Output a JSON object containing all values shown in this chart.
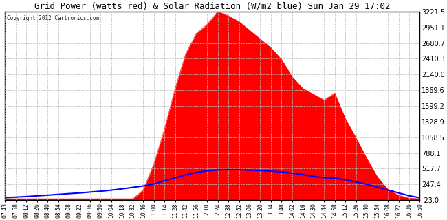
{
  "title": "Grid Power (watts red) & Solar Radiation (W/m2 blue) Sun Jan 29 17:02",
  "copyright": "Copyright 2012 Cartronics.com",
  "background_color": "#ffffff",
  "plot_bg_color": "#ffffff",
  "grid_color": "#bbbbbb",
  "yticks": [
    3221.5,
    2951.1,
    2680.7,
    2410.3,
    2140.0,
    1869.6,
    1599.2,
    1328.9,
    1058.5,
    788.1,
    517.7,
    247.4,
    -23.0
  ],
  "ymin": -23.0,
  "ymax": 3221.5,
  "solar_color": "#ff0000",
  "radiation_color": "#0000ff",
  "x_labels": [
    "07:43",
    "07:58",
    "08:12",
    "08:26",
    "08:40",
    "08:54",
    "09:08",
    "09:22",
    "09:36",
    "09:50",
    "10:04",
    "10:18",
    "10:32",
    "10:46",
    "11:00",
    "11:14",
    "11:28",
    "11:42",
    "11:56",
    "12:10",
    "12:24",
    "12:38",
    "12:52",
    "13:06",
    "13:20",
    "13:34",
    "13:48",
    "14:02",
    "14:16",
    "14:30",
    "14:44",
    "14:58",
    "15:12",
    "15:26",
    "15:40",
    "15:54",
    "16:08",
    "16:22",
    "16:36",
    "16:50"
  ],
  "solar_power": [
    0,
    0,
    0,
    0,
    0,
    0,
    0,
    0,
    0,
    0,
    0,
    0,
    0,
    150,
    600,
    1200,
    1900,
    2500,
    2850,
    3000,
    3221,
    3150,
    3050,
    2900,
    2750,
    2600,
    2400,
    2100,
    1900,
    1800,
    1700,
    1820,
    1380,
    1050,
    700,
    380,
    160,
    60,
    10,
    0
  ],
  "solar_radiation": [
    20,
    28,
    38,
    50,
    62,
    75,
    88,
    100,
    115,
    130,
    148,
    170,
    195,
    220,
    255,
    310,
    360,
    410,
    450,
    480,
    495,
    500,
    498,
    492,
    485,
    475,
    460,
    440,
    415,
    385,
    360,
    355,
    325,
    290,
    248,
    200,
    152,
    100,
    52,
    18
  ]
}
